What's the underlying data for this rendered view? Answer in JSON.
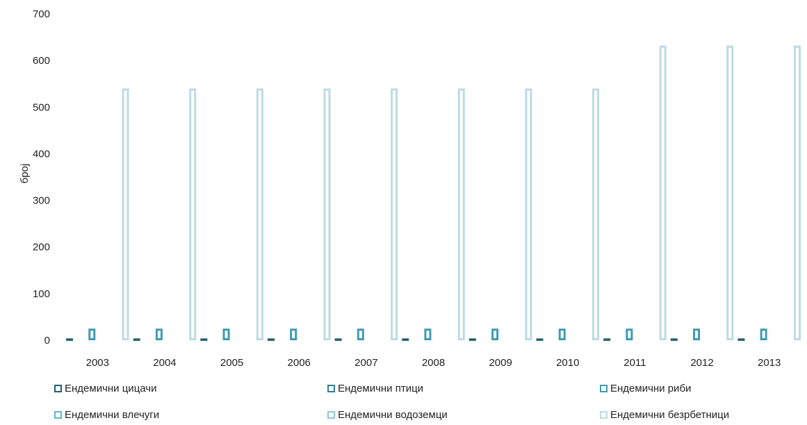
{
  "chart_data": {
    "type": "bar",
    "categories": [
      "2003",
      "2004",
      "2005",
      "2006",
      "2007",
      "2008",
      "2009",
      "2010",
      "2011",
      "2012",
      "2013"
    ],
    "series": [
      {
        "name": "Ендемични цицачи",
        "values": [
          4,
          4,
          4,
          4,
          4,
          4,
          4,
          4,
          4,
          4,
          4
        ],
        "color": "#1f5f6b"
      },
      {
        "name": "Ендемични птици",
        "values": [
          0,
          0,
          0,
          0,
          0,
          0,
          0,
          0,
          0,
          0,
          0
        ],
        "color": "#2c7f94"
      },
      {
        "name": "Ендемични риби",
        "values": [
          25,
          25,
          25,
          25,
          25,
          25,
          25,
          25,
          25,
          25,
          25
        ],
        "color": "#3e9cb3"
      },
      {
        "name": "Ендемични влечуги",
        "values": [
          0,
          0,
          0,
          0,
          0,
          0,
          0,
          0,
          0,
          0,
          0
        ],
        "color": "#5cb5cc"
      },
      {
        "name": "Ендемични водоземци",
        "values": [
          0,
          0,
          0,
          0,
          0,
          0,
          0,
          0,
          0,
          0,
          0
        ],
        "color": "#8fc6d5"
      },
      {
        "name": "Ендемични безрбетници",
        "values": [
          540,
          540,
          540,
          540,
          540,
          540,
          540,
          540,
          632,
          632,
          632
        ],
        "color": "#bcdbe3"
      }
    ],
    "ylabel": "број",
    "ylim": [
      0,
      700
    ],
    "yticks": [
      "0",
      "100",
      "200",
      "300",
      "400",
      "500",
      "600",
      "700"
    ],
    "grid": false,
    "legend_position": "bottom"
  }
}
